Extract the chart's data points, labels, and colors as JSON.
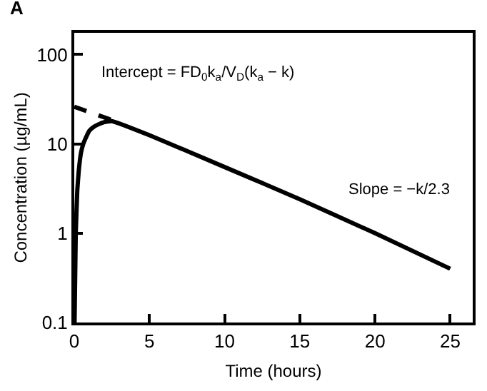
{
  "chart_data": {
    "type": "line",
    "title": "A",
    "xlabel": "Time (hours)",
    "ylabel": "Concentration (µg/mL)",
    "log": "y",
    "xlim": [
      0,
      26.5
    ],
    "ylim": [
      0.1,
      175
    ],
    "xticks": [
      0,
      5,
      10,
      15,
      20,
      25
    ],
    "yticks": [
      0.1,
      1,
      10,
      100
    ],
    "series": [
      {
        "color": "#000000",
        "line_style": "solid",
        "x": [
          0.02,
          0.1,
          0.2,
          0.3,
          0.45,
          0.6,
          0.8,
          1.0,
          1.3,
          1.6,
          2.0,
          2.5,
          5,
          10,
          15,
          20,
          25
        ],
        "values": [
          0.1,
          1,
          3,
          5,
          8,
          10,
          12,
          14,
          15.5,
          16.5,
          17.5,
          18,
          12.5,
          5.5,
          2.4,
          1.0,
          0.4
        ]
      },
      {
        "color": "#000000",
        "line_style": "dashed",
        "x": [
          0,
          2.5
        ],
        "values": [
          26,
          18.5
        ]
      }
    ],
    "annotations": [
      "Intercept = FD$_{0}$k$_{a}$/V$_{D}$(k$_{a}$ − k)",
      "Slope = −k/2.3"
    ]
  }
}
